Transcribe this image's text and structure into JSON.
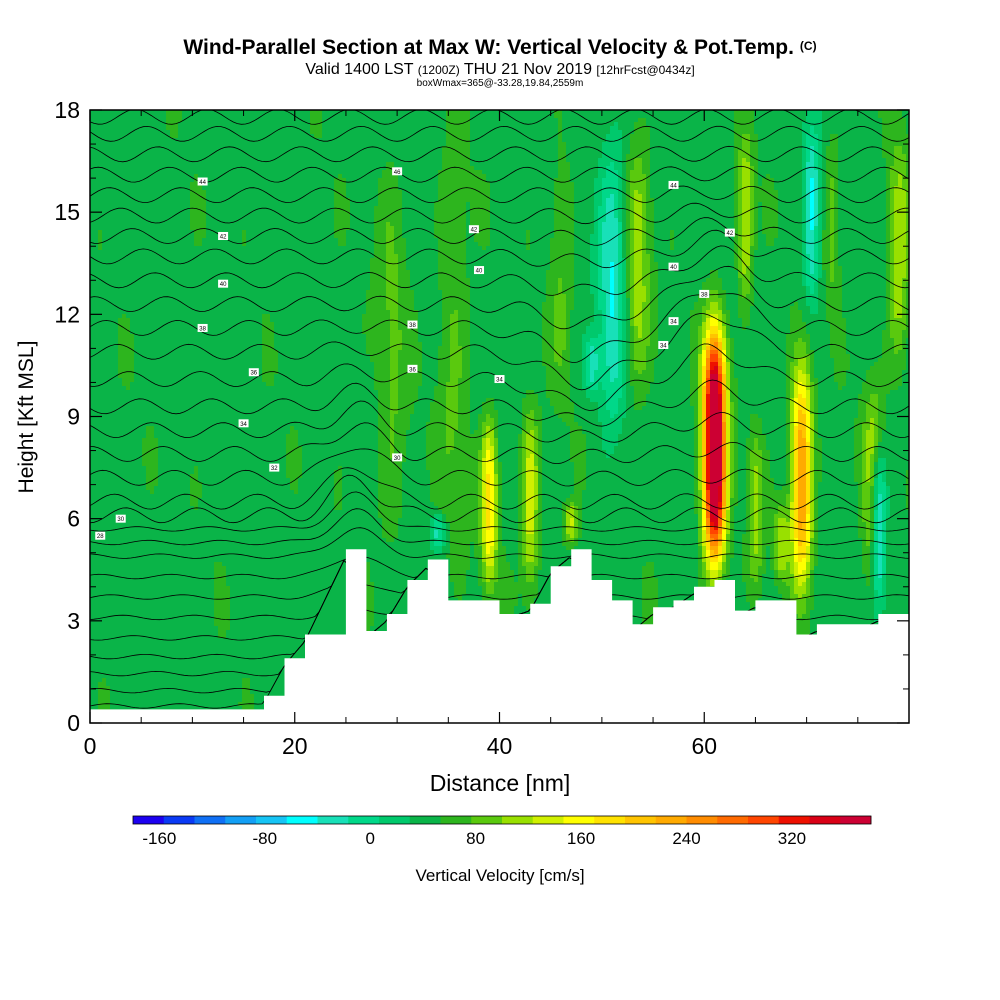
{
  "title": "Wind-Parallel Section at Max W: Vertical Velocity & Pot.Temp.",
  "copyright": "(C)",
  "subtitle_main": "Valid 1400 LST",
  "subtitle_z": "(1200Z)",
  "subtitle_date": "THU 21 Nov 2019",
  "subtitle_fcst": "[12hrFcst@0434z]",
  "subtitle_box": "boxWmax=365@-33.28,19.84,2559m",
  "chart_data": {
    "type": "heatmap",
    "title": "Wind-Parallel Section at Max W: Vertical Velocity & Pot.Temp.",
    "xlabel": "Distance [nm]",
    "ylabel": "Height [Kft MSL]",
    "xlim": [
      0,
      80
    ],
    "ylim": [
      0,
      18
    ],
    "x_ticks": [
      0,
      20,
      40,
      60
    ],
    "y_ticks": [
      0,
      3,
      6,
      9,
      12,
      15,
      18
    ],
    "colorbar": {
      "label": "Vertical Velocity [cm/s]",
      "min": -180,
      "max": 380,
      "step": 20,
      "tick_values": [
        -160,
        -80,
        0,
        80,
        160,
        240,
        320
      ],
      "tick_labels": [
        "-160",
        "-80",
        "0",
        "80",
        "160",
        "240",
        "320"
      ],
      "colors": [
        "#1c00f0",
        "#0a3af5",
        "#1070f5",
        "#139ff5",
        "#16c4f5",
        "#00ffff",
        "#18e0b8",
        "#00d889",
        "#00c96c",
        "#0ab448",
        "#2db51e",
        "#5ac90e",
        "#99e000",
        "#d0f000",
        "#ffff00",
        "#ffe200",
        "#ffc400",
        "#ffaa00",
        "#ff8c00",
        "#ff6a00",
        "#ff4500",
        "#ee1000",
        "#d90016",
        "#cc0033"
      ]
    },
    "terrain": {
      "x": [
        0,
        15,
        17,
        19,
        21,
        25,
        27,
        29,
        31,
        33,
        35,
        37,
        40,
        43,
        45,
        47,
        49,
        51,
        53,
        55,
        57,
        59,
        61,
        63,
        65,
        67,
        69,
        71,
        73,
        75,
        77,
        80
      ],
      "height": [
        0.4,
        0.4,
        0.8,
        1.9,
        2.6,
        5.1,
        2.7,
        3.2,
        4.2,
        4.8,
        3.6,
        3.6,
        3.2,
        3.5,
        4.6,
        5.1,
        4.2,
        3.6,
        2.9,
        3.4,
        3.6,
        4.0,
        4.2,
        3.3,
        3.6,
        3.6,
        2.6,
        2.9,
        2.9,
        2.9,
        3.2,
        3.3
      ]
    },
    "updrafts": [
      {
        "x": 61,
        "base": 4.2,
        "top": 12.1,
        "peak": 350
      },
      {
        "x": 69.5,
        "base": 3.5,
        "top": 11.0,
        "peak": 170
      },
      {
        "x": 39,
        "base": 3.6,
        "top": 9.3,
        "peak": 110
      },
      {
        "x": 43,
        "base": 3.5,
        "top": 9.6,
        "peak": 80
      },
      {
        "x": 76.5,
        "base": 3.0,
        "top": 10.3,
        "peak": 70
      },
      {
        "x": 65,
        "base": 3.6,
        "top": 9.0,
        "peak": 55
      },
      {
        "x": 67.5,
        "base": 4.0,
        "top": 6.6,
        "peak": 60
      },
      {
        "x": 47,
        "base": 5.1,
        "top": 6.6,
        "peak": 70
      },
      {
        "x": 29.5,
        "base": 4.0,
        "top": 17.5,
        "peak": 30
      },
      {
        "x": 35.5,
        "base": 4.0,
        "top": 17.5,
        "peak": 30
      },
      {
        "x": 46,
        "base": 9.0,
        "top": 17.5,
        "peak": 30
      },
      {
        "x": 53.5,
        "base": 9.0,
        "top": 17.5,
        "peak": 60
      },
      {
        "x": 64,
        "base": 12.0,
        "top": 17.5,
        "peak": 75
      },
      {
        "x": 72.5,
        "base": 12.0,
        "top": 17.5,
        "peak": 40
      },
      {
        "x": 79,
        "base": 10.0,
        "top": 17.5,
        "peak": 65
      }
    ],
    "downdrafts": [
      {
        "x": 51,
        "base": 8.0,
        "top": 17.8,
        "peak": -70
      },
      {
        "x": 70.5,
        "base": 12.0,
        "top": 17.8,
        "peak": -80
      },
      {
        "x": 77,
        "base": 3.0,
        "top": 8.5,
        "peak": -110
      },
      {
        "x": 49,
        "base": 9.5,
        "top": 11.5,
        "peak": -60
      },
      {
        "x": 34,
        "base": 5.0,
        "top": 6.2,
        "peak": -60
      }
    ],
    "pot_temp_levels": [
      0.5,
      0.95,
      1.45,
      1.95,
      2.5,
      3.1,
      3.7,
      4.3,
      4.9,
      5.3,
      5.7,
      6.1,
      6.5,
      7.2,
      7.9,
      8.6,
      9.3,
      10.1,
      10.9,
      11.6,
      12.3,
      13.0,
      13.7,
      14.3,
      14.9,
      15.5,
      16.1,
      16.7,
      17.3,
      17.8
    ],
    "pot_temp_labels": [
      {
        "x": 11,
        "y": 15.9,
        "text": "44"
      },
      {
        "x": 13,
        "y": 14.3,
        "text": "42"
      },
      {
        "x": 13,
        "y": 12.9,
        "text": "40"
      },
      {
        "x": 11,
        "y": 11.6,
        "text": "38"
      },
      {
        "x": 16,
        "y": 10.3,
        "text": "36"
      },
      {
        "x": 15,
        "y": 8.8,
        "text": "34"
      },
      {
        "x": 18,
        "y": 7.5,
        "text": "32"
      },
      {
        "x": 3,
        "y": 6.0,
        "text": "30"
      },
      {
        "x": 1,
        "y": 5.5,
        "text": "28"
      },
      {
        "x": 30,
        "y": 16.2,
        "text": "46"
      },
      {
        "x": 37.5,
        "y": 14.5,
        "text": "42"
      },
      {
        "x": 38,
        "y": 13.3,
        "text": "40"
      },
      {
        "x": 31.5,
        "y": 11.7,
        "text": "38"
      },
      {
        "x": 31.5,
        "y": 10.4,
        "text": "36"
      },
      {
        "x": 40,
        "y": 10.1,
        "text": "34"
      },
      {
        "x": 30,
        "y": 7.8,
        "text": "30"
      },
      {
        "x": 57,
        "y": 15.8,
        "text": "44"
      },
      {
        "x": 62.5,
        "y": 14.4,
        "text": "42"
      },
      {
        "x": 57,
        "y": 13.4,
        "text": "40"
      },
      {
        "x": 60,
        "y": 12.6,
        "text": "38"
      },
      {
        "x": 57,
        "y": 11.8,
        "text": "34"
      },
      {
        "x": 56,
        "y": 11.1,
        "text": "34"
      }
    ]
  }
}
